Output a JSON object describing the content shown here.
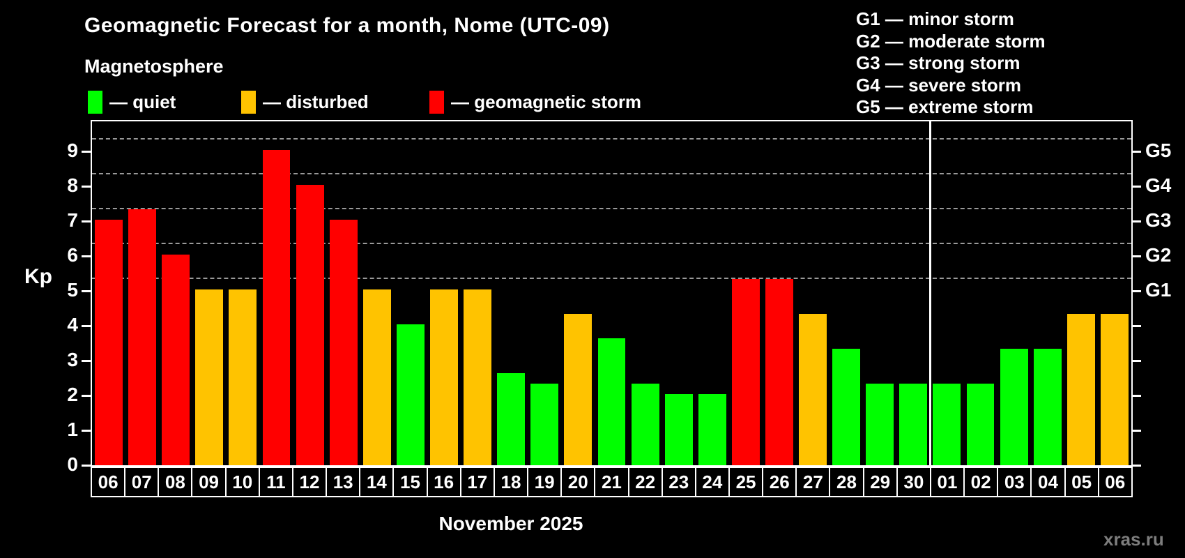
{
  "header": {
    "title": "Geomagnetic Forecast for a month, Nome (UTC-09)",
    "subtitle": "Magnetosphere"
  },
  "legend": {
    "quiet": {
      "label": "— quiet",
      "color": "#00ff00"
    },
    "disturbed": {
      "label": "— disturbed",
      "color": "#ffc300"
    },
    "storm": {
      "label": "— geomagnetic storm",
      "color": "#ff0000"
    }
  },
  "g_legend": {
    "items": [
      "G1 — minor storm",
      "G2 — moderate storm",
      "G3 — strong storm",
      "G4 — severe storm",
      "G5 — extreme storm"
    ]
  },
  "axis": {
    "ylabel": "Kp",
    "yticks": [
      0,
      1,
      2,
      3,
      4,
      5,
      6,
      7,
      8,
      9
    ],
    "right_levels": [
      {
        "kp": 5,
        "label": "G1"
      },
      {
        "kp": 6,
        "label": "G2"
      },
      {
        "kp": 7,
        "label": "G3"
      },
      {
        "kp": 8,
        "label": "G4"
      },
      {
        "kp": 9,
        "label": "G5"
      }
    ]
  },
  "month_label": "November 2025",
  "watermark": "xras.ru",
  "chart_data": {
    "type": "bar",
    "title": "Geomagnetic Forecast for a month, Nome (UTC-09)",
    "subtitle": "Magnetosphere",
    "xlabel": "November 2025",
    "ylabel": "Kp",
    "ylim": [
      0,
      9
    ],
    "grid": "dashed horizontal lines at Kp 5,6,7,8,9 (G1–G5 storm levels)",
    "legend_position": "top-left",
    "month_separator_between": [
      "30",
      "01"
    ],
    "categories": [
      "06",
      "07",
      "08",
      "09",
      "10",
      "11",
      "12",
      "13",
      "14",
      "15",
      "16",
      "17",
      "18",
      "19",
      "20",
      "21",
      "22",
      "23",
      "24",
      "25",
      "26",
      "27",
      "28",
      "29",
      "30",
      "01",
      "02",
      "03",
      "04",
      "05",
      "06"
    ],
    "bars": [
      {
        "date": "06",
        "value": 6.7,
        "level": "storm"
      },
      {
        "date": "07",
        "value": 7.0,
        "level": "storm"
      },
      {
        "date": "08",
        "value": 5.7,
        "level": "storm"
      },
      {
        "date": "09",
        "value": 4.7,
        "level": "disturbed"
      },
      {
        "date": "10",
        "value": 4.7,
        "level": "disturbed"
      },
      {
        "date": "11",
        "value": 8.7,
        "level": "storm"
      },
      {
        "date": "12",
        "value": 7.7,
        "level": "storm"
      },
      {
        "date": "13",
        "value": 6.7,
        "level": "storm"
      },
      {
        "date": "14",
        "value": 4.7,
        "level": "disturbed"
      },
      {
        "date": "15",
        "value": 3.7,
        "level": "quiet"
      },
      {
        "date": "16",
        "value": 4.7,
        "level": "disturbed"
      },
      {
        "date": "17",
        "value": 4.7,
        "level": "disturbed"
      },
      {
        "date": "18",
        "value": 2.3,
        "level": "quiet"
      },
      {
        "date": "19",
        "value": 2.0,
        "level": "quiet"
      },
      {
        "date": "20",
        "value": 4.0,
        "level": "disturbed"
      },
      {
        "date": "21",
        "value": 3.3,
        "level": "quiet"
      },
      {
        "date": "22",
        "value": 2.0,
        "level": "quiet"
      },
      {
        "date": "23",
        "value": 1.7,
        "level": "quiet"
      },
      {
        "date": "24",
        "value": 1.7,
        "level": "quiet"
      },
      {
        "date": "25",
        "value": 5.0,
        "level": "storm"
      },
      {
        "date": "26",
        "value": 5.0,
        "level": "storm"
      },
      {
        "date": "27",
        "value": 4.0,
        "level": "disturbed"
      },
      {
        "date": "28",
        "value": 3.0,
        "level": "quiet"
      },
      {
        "date": "29",
        "value": 2.0,
        "level": "quiet"
      },
      {
        "date": "30",
        "value": 2.0,
        "level": "quiet"
      },
      {
        "date": "01",
        "value": 2.0,
        "level": "quiet"
      },
      {
        "date": "02",
        "value": 2.0,
        "level": "quiet"
      },
      {
        "date": "03",
        "value": 3.0,
        "level": "quiet"
      },
      {
        "date": "04",
        "value": 3.0,
        "level": "quiet"
      },
      {
        "date": "05",
        "value": 4.0,
        "level": "disturbed"
      },
      {
        "date": "06",
        "value": 4.0,
        "level": "disturbed"
      }
    ]
  }
}
